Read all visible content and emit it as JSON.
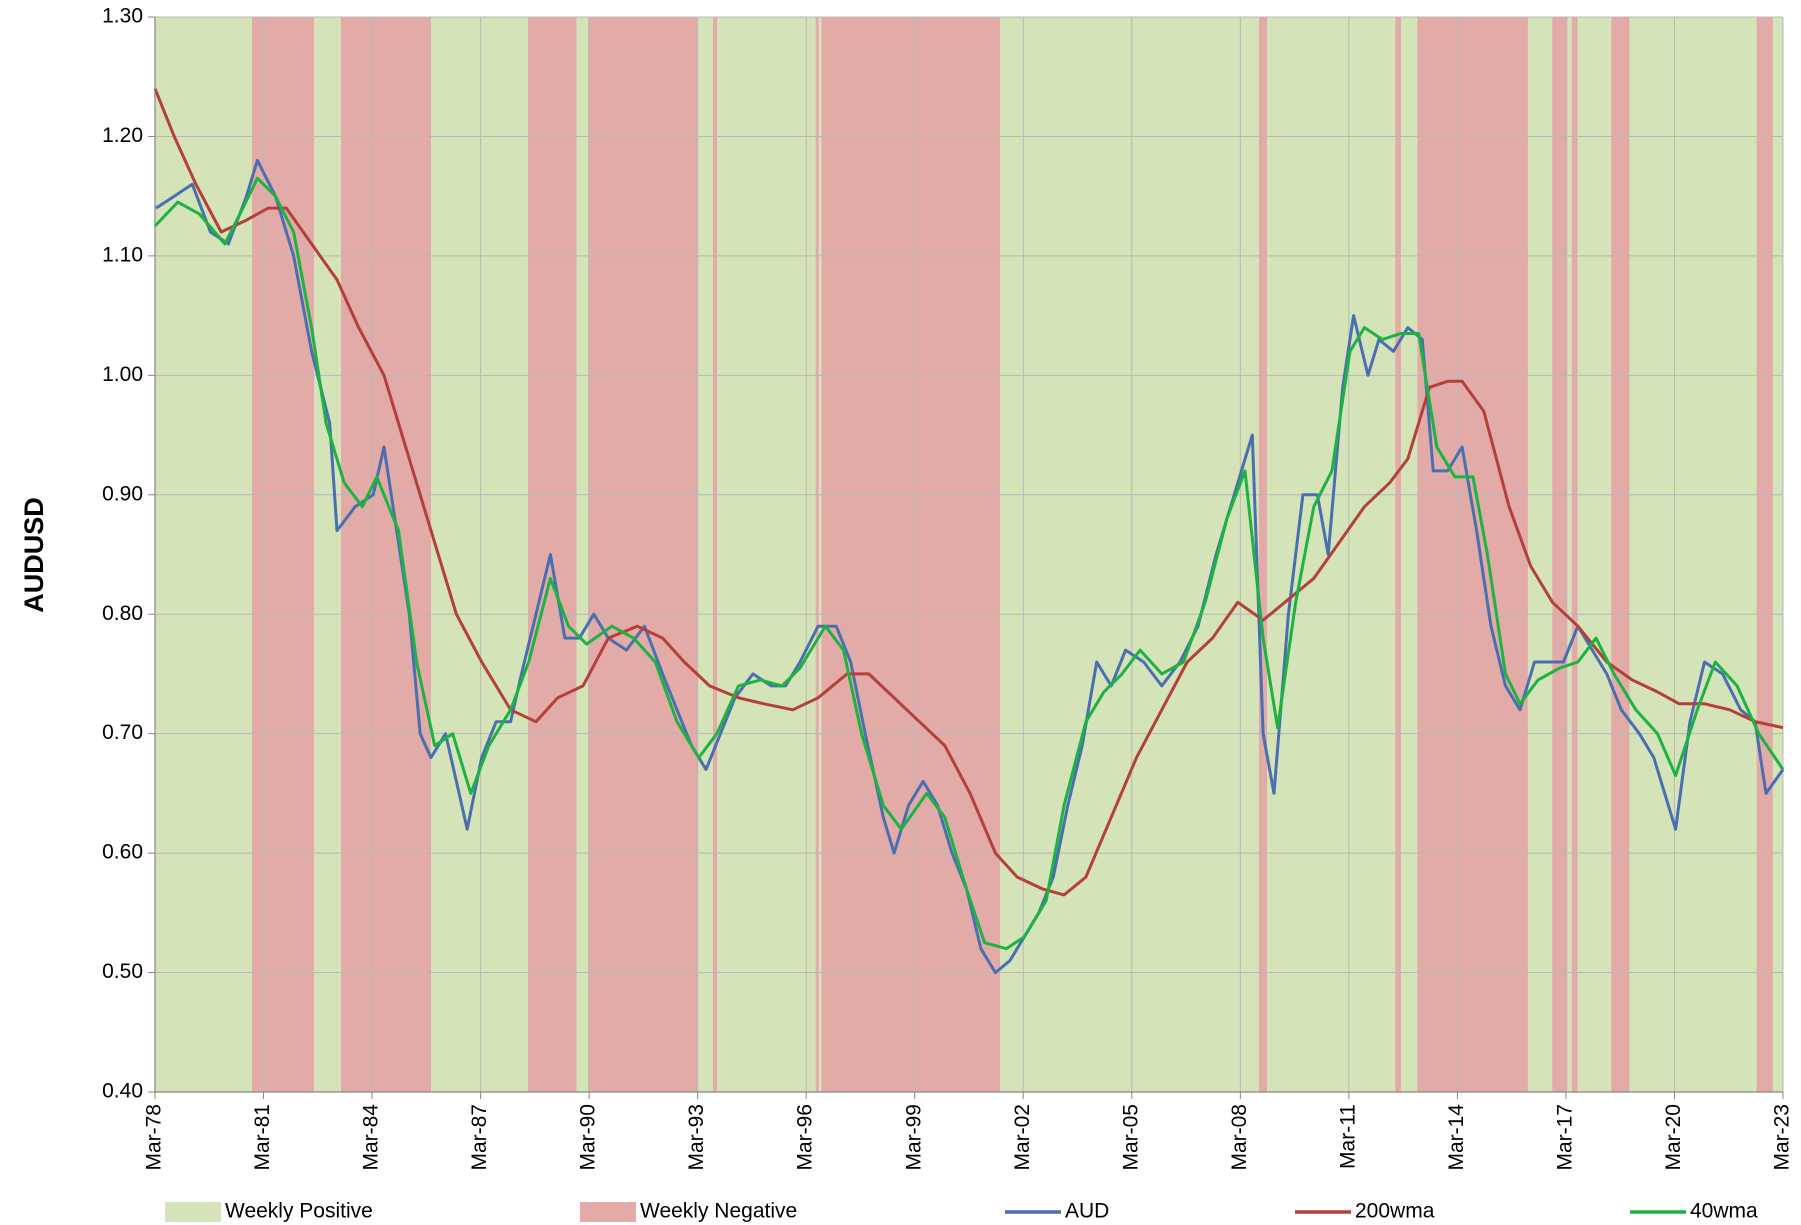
{
  "chart_data": {
    "type": "line",
    "ylabel": "AUDUSD",
    "xlim": [
      1978.17,
      2023.17
    ],
    "ylim": [
      0.4,
      1.3
    ],
    "grid": true,
    "xticks": [
      {
        "value": 1978.17,
        "label": "Mar-78"
      },
      {
        "value": 1981.17,
        "label": "Mar-81"
      },
      {
        "value": 1984.17,
        "label": "Mar-84"
      },
      {
        "value": 1987.17,
        "label": "Mar-87"
      },
      {
        "value": 1990.17,
        "label": "Mar-90"
      },
      {
        "value": 1993.17,
        "label": "Mar-93"
      },
      {
        "value": 1996.17,
        "label": "Mar-96"
      },
      {
        "value": 1999.17,
        "label": "Mar-99"
      },
      {
        "value": 2002.17,
        "label": "Mar-02"
      },
      {
        "value": 2005.17,
        "label": "Mar-05"
      },
      {
        "value": 2008.17,
        "label": "Mar-08"
      },
      {
        "value": 2011.17,
        "label": "Mar-11"
      },
      {
        "value": 2014.17,
        "label": "Mar-14"
      },
      {
        "value": 2017.17,
        "label": "Mar-17"
      },
      {
        "value": 2020.17,
        "label": "Mar-20"
      },
      {
        "value": 2023.17,
        "label": "Mar-23"
      }
    ],
    "yticks": [
      {
        "value": 0.4,
        "label": "0.40"
      },
      {
        "value": 0.5,
        "label": "0.50"
      },
      {
        "value": 0.6,
        "label": "0.60"
      },
      {
        "value": 0.7,
        "label": "0.70"
      },
      {
        "value": 0.8,
        "label": "0.80"
      },
      {
        "value": 0.9,
        "label": "0.90"
      },
      {
        "value": 1.0,
        "label": "1.00"
      },
      {
        "value": 1.1,
        "label": "1.10"
      },
      {
        "value": 1.2,
        "label": "1.20"
      },
      {
        "value": 1.3,
        "label": "1.30"
      }
    ],
    "bands": [
      {
        "name": "Weekly Positive",
        "color": "#d5e3b8",
        "ranges": [
          [
            1978.17,
            1980.85
          ],
          [
            1982.57,
            1983.31
          ],
          [
            1985.8,
            1988.48
          ],
          [
            1989.82,
            1990.14
          ],
          [
            1993.17,
            1993.59
          ],
          [
            1993.71,
            1996.43
          ],
          [
            1996.52,
            1996.59
          ],
          [
            2001.53,
            2008.68
          ],
          [
            2008.91,
            2012.45
          ],
          [
            2012.61,
            2013.06
          ],
          [
            2016.12,
            2016.79
          ],
          [
            2017.21,
            2017.33
          ],
          [
            2017.49,
            2018.42
          ],
          [
            2018.93,
            2022.44
          ],
          [
            2022.89,
            2023.17
          ]
        ]
      },
      {
        "name": "Weekly Negative",
        "color": "#e3aba8",
        "ranges": [
          [
            1980.85,
            1982.57
          ],
          [
            1983.31,
            1985.8
          ],
          [
            1988.48,
            1989.82
          ],
          [
            1990.14,
            1993.17
          ],
          [
            1993.59,
            1993.71
          ],
          [
            1996.43,
            1996.52
          ],
          [
            1996.59,
            2001.53
          ],
          [
            2008.68,
            2008.91
          ],
          [
            2012.45,
            2012.61
          ],
          [
            2013.06,
            2016.12
          ],
          [
            2016.79,
            2017.21
          ],
          [
            2017.33,
            2017.49
          ],
          [
            2018.42,
            2018.93
          ],
          [
            2022.44,
            2022.89
          ]
        ]
      }
    ],
    "series": [
      {
        "name": "AUD",
        "color": "#4a6fb0",
        "x": [
          1978.2,
          1978.7,
          1979.2,
          1979.7,
          1980.2,
          1980.7,
          1981.0,
          1981.5,
          1982.0,
          1982.5,
          1983.0,
          1983.2,
          1983.7,
          1984.2,
          1984.5,
          1984.9,
          1985.2,
          1985.5,
          1985.8,
          1986.2,
          1986.5,
          1986.8,
          1987.2,
          1987.6,
          1988.0,
          1988.3,
          1988.7,
          1989.1,
          1989.5,
          1989.9,
          1990.3,
          1990.7,
          1991.2,
          1991.7,
          1992.2,
          1992.6,
          1993.0,
          1993.4,
          1993.8,
          1994.2,
          1994.7,
          1995.2,
          1995.6,
          1996.0,
          1996.5,
          1997.0,
          1997.4,
          1997.8,
          1998.3,
          1998.6,
          1999.0,
          1999.4,
          1999.8,
          2000.2,
          2000.6,
          2001.0,
          2001.4,
          2001.8,
          2002.2,
          2002.6,
          2003.0,
          2003.4,
          2003.8,
          2004.2,
          2004.6,
          2005.0,
          2005.5,
          2006.0,
          2006.5,
          2007.0,
          2007.5,
          2008.0,
          2008.5,
          2008.8,
          2009.1,
          2009.5,
          2009.9,
          2010.3,
          2010.6,
          2011.0,
          2011.3,
          2011.7,
          2012.0,
          2012.4,
          2012.8,
          2013.2,
          2013.5,
          2013.9,
          2014.3,
          2014.7,
          2015.1,
          2015.5,
          2015.9,
          2016.3,
          2016.7,
          2017.1,
          2017.5,
          2017.9,
          2018.3,
          2018.7,
          2019.2,
          2019.6,
          2020.2,
          2020.6,
          2021.0,
          2021.5,
          2022.0,
          2022.4,
          2022.7,
          2023.17
        ],
        "values": [
          1.14,
          1.15,
          1.16,
          1.12,
          1.11,
          1.15,
          1.18,
          1.15,
          1.1,
          1.02,
          0.96,
          0.87,
          0.89,
          0.9,
          0.94,
          0.86,
          0.8,
          0.7,
          0.68,
          0.7,
          0.66,
          0.62,
          0.68,
          0.71,
          0.71,
          0.75,
          0.8,
          0.85,
          0.78,
          0.78,
          0.8,
          0.78,
          0.77,
          0.79,
          0.75,
          0.72,
          0.69,
          0.67,
          0.7,
          0.73,
          0.75,
          0.74,
          0.74,
          0.76,
          0.79,
          0.79,
          0.76,
          0.7,
          0.63,
          0.6,
          0.64,
          0.66,
          0.64,
          0.6,
          0.57,
          0.52,
          0.5,
          0.51,
          0.53,
          0.55,
          0.58,
          0.64,
          0.69,
          0.76,
          0.74,
          0.77,
          0.76,
          0.74,
          0.76,
          0.79,
          0.85,
          0.9,
          0.95,
          0.7,
          0.65,
          0.8,
          0.9,
          0.9,
          0.85,
          0.99,
          1.05,
          1.0,
          1.03,
          1.02,
          1.04,
          1.03,
          0.92,
          0.92,
          0.94,
          0.87,
          0.79,
          0.74,
          0.72,
          0.76,
          0.76,
          0.76,
          0.79,
          0.77,
          0.75,
          0.72,
          0.7,
          0.68,
          0.62,
          0.71,
          0.76,
          0.75,
          0.72,
          0.71,
          0.65,
          0.67
        ]
      },
      {
        "name": "200wma",
        "color": "#b3403a",
        "x": [
          1978.17,
          1978.7,
          1979.3,
          1980.0,
          1980.7,
          1981.3,
          1981.8,
          1982.5,
          1983.2,
          1983.8,
          1984.5,
          1985.2,
          1985.8,
          1986.5,
          1987.2,
          1988.0,
          1988.7,
          1989.3,
          1990.0,
          1990.7,
          1991.5,
          1992.2,
          1992.8,
          1993.5,
          1994.3,
          1995.0,
          1995.8,
          1996.5,
          1997.3,
          1997.9,
          1998.6,
          1999.3,
          2000.0,
          2000.7,
          2001.4,
          2002.0,
          2002.7,
          2003.3,
          2003.9,
          2004.6,
          2005.3,
          2006.0,
          2006.7,
          2007.4,
          2008.1,
          2008.8,
          2009.4,
          2010.2,
          2010.9,
          2011.6,
          2012.3,
          2012.8,
          2013.4,
          2013.9,
          2014.3,
          2014.9,
          2015.6,
          2016.2,
          2016.8,
          2017.5,
          2018.3,
          2019.0,
          2019.7,
          2020.3,
          2021.0,
          2021.7,
          2022.4,
          2023.17
        ],
        "values": [
          1.24,
          1.2,
          1.16,
          1.12,
          1.13,
          1.14,
          1.14,
          1.11,
          1.08,
          1.04,
          1.0,
          0.93,
          0.87,
          0.8,
          0.76,
          0.72,
          0.71,
          0.73,
          0.74,
          0.78,
          0.79,
          0.78,
          0.76,
          0.74,
          0.73,
          0.725,
          0.72,
          0.73,
          0.75,
          0.75,
          0.73,
          0.71,
          0.69,
          0.65,
          0.6,
          0.58,
          0.57,
          0.565,
          0.58,
          0.63,
          0.68,
          0.72,
          0.76,
          0.78,
          0.81,
          0.795,
          0.81,
          0.83,
          0.86,
          0.89,
          0.91,
          0.93,
          0.99,
          0.995,
          0.995,
          0.97,
          0.89,
          0.84,
          0.81,
          0.79,
          0.76,
          0.745,
          0.735,
          0.725,
          0.725,
          0.72,
          0.71,
          0.705
        ]
      },
      {
        "name": "40wma",
        "color": "#1db341",
        "x": [
          1978.17,
          1978.8,
          1979.4,
          1980.1,
          1980.6,
          1981.0,
          1981.5,
          1982.0,
          1982.5,
          1982.9,
          1983.4,
          1983.9,
          1984.3,
          1984.9,
          1985.4,
          1985.9,
          1986.4,
          1986.9,
          1987.4,
          1988.0,
          1988.5,
          1989.1,
          1989.6,
          1990.1,
          1990.8,
          1991.4,
          1992.0,
          1992.6,
          1993.2,
          1993.7,
          1994.3,
          1994.9,
          1995.5,
          1996.0,
          1996.7,
          1997.2,
          1997.7,
          1998.3,
          1998.8,
          1999.5,
          2000.0,
          2000.6,
          2001.1,
          2001.7,
          2002.2,
          2002.8,
          2003.3,
          2003.9,
          2004.4,
          2004.9,
          2005.4,
          2006.0,
          2006.6,
          2007.2,
          2007.8,
          2008.3,
          2008.8,
          2009.2,
          2009.7,
          2010.2,
          2010.7,
          2011.2,
          2011.6,
          2012.1,
          2012.6,
          2013.1,
          2013.6,
          2014.1,
          2014.6,
          2015.0,
          2015.5,
          2015.9,
          2016.4,
          2017.0,
          2017.5,
          2018.0,
          2018.5,
          2019.1,
          2019.7,
          2020.2,
          2020.8,
          2021.3,
          2021.9,
          2022.5,
          2023.17
        ],
        "values": [
          1.125,
          1.145,
          1.135,
          1.11,
          1.14,
          1.165,
          1.15,
          1.12,
          1.04,
          0.96,
          0.91,
          0.89,
          0.915,
          0.87,
          0.76,
          0.69,
          0.7,
          0.65,
          0.69,
          0.72,
          0.76,
          0.83,
          0.79,
          0.775,
          0.79,
          0.78,
          0.76,
          0.71,
          0.68,
          0.7,
          0.74,
          0.745,
          0.74,
          0.755,
          0.79,
          0.77,
          0.7,
          0.64,
          0.62,
          0.65,
          0.63,
          0.57,
          0.525,
          0.52,
          0.53,
          0.56,
          0.64,
          0.71,
          0.735,
          0.75,
          0.77,
          0.75,
          0.76,
          0.81,
          0.88,
          0.92,
          0.78,
          0.705,
          0.81,
          0.89,
          0.92,
          1.02,
          1.04,
          1.03,
          1.035,
          1.035,
          0.94,
          0.915,
          0.915,
          0.85,
          0.75,
          0.725,
          0.745,
          0.755,
          0.76,
          0.78,
          0.75,
          0.72,
          0.7,
          0.665,
          0.72,
          0.76,
          0.74,
          0.7,
          0.67
        ]
      }
    ]
  }
}
